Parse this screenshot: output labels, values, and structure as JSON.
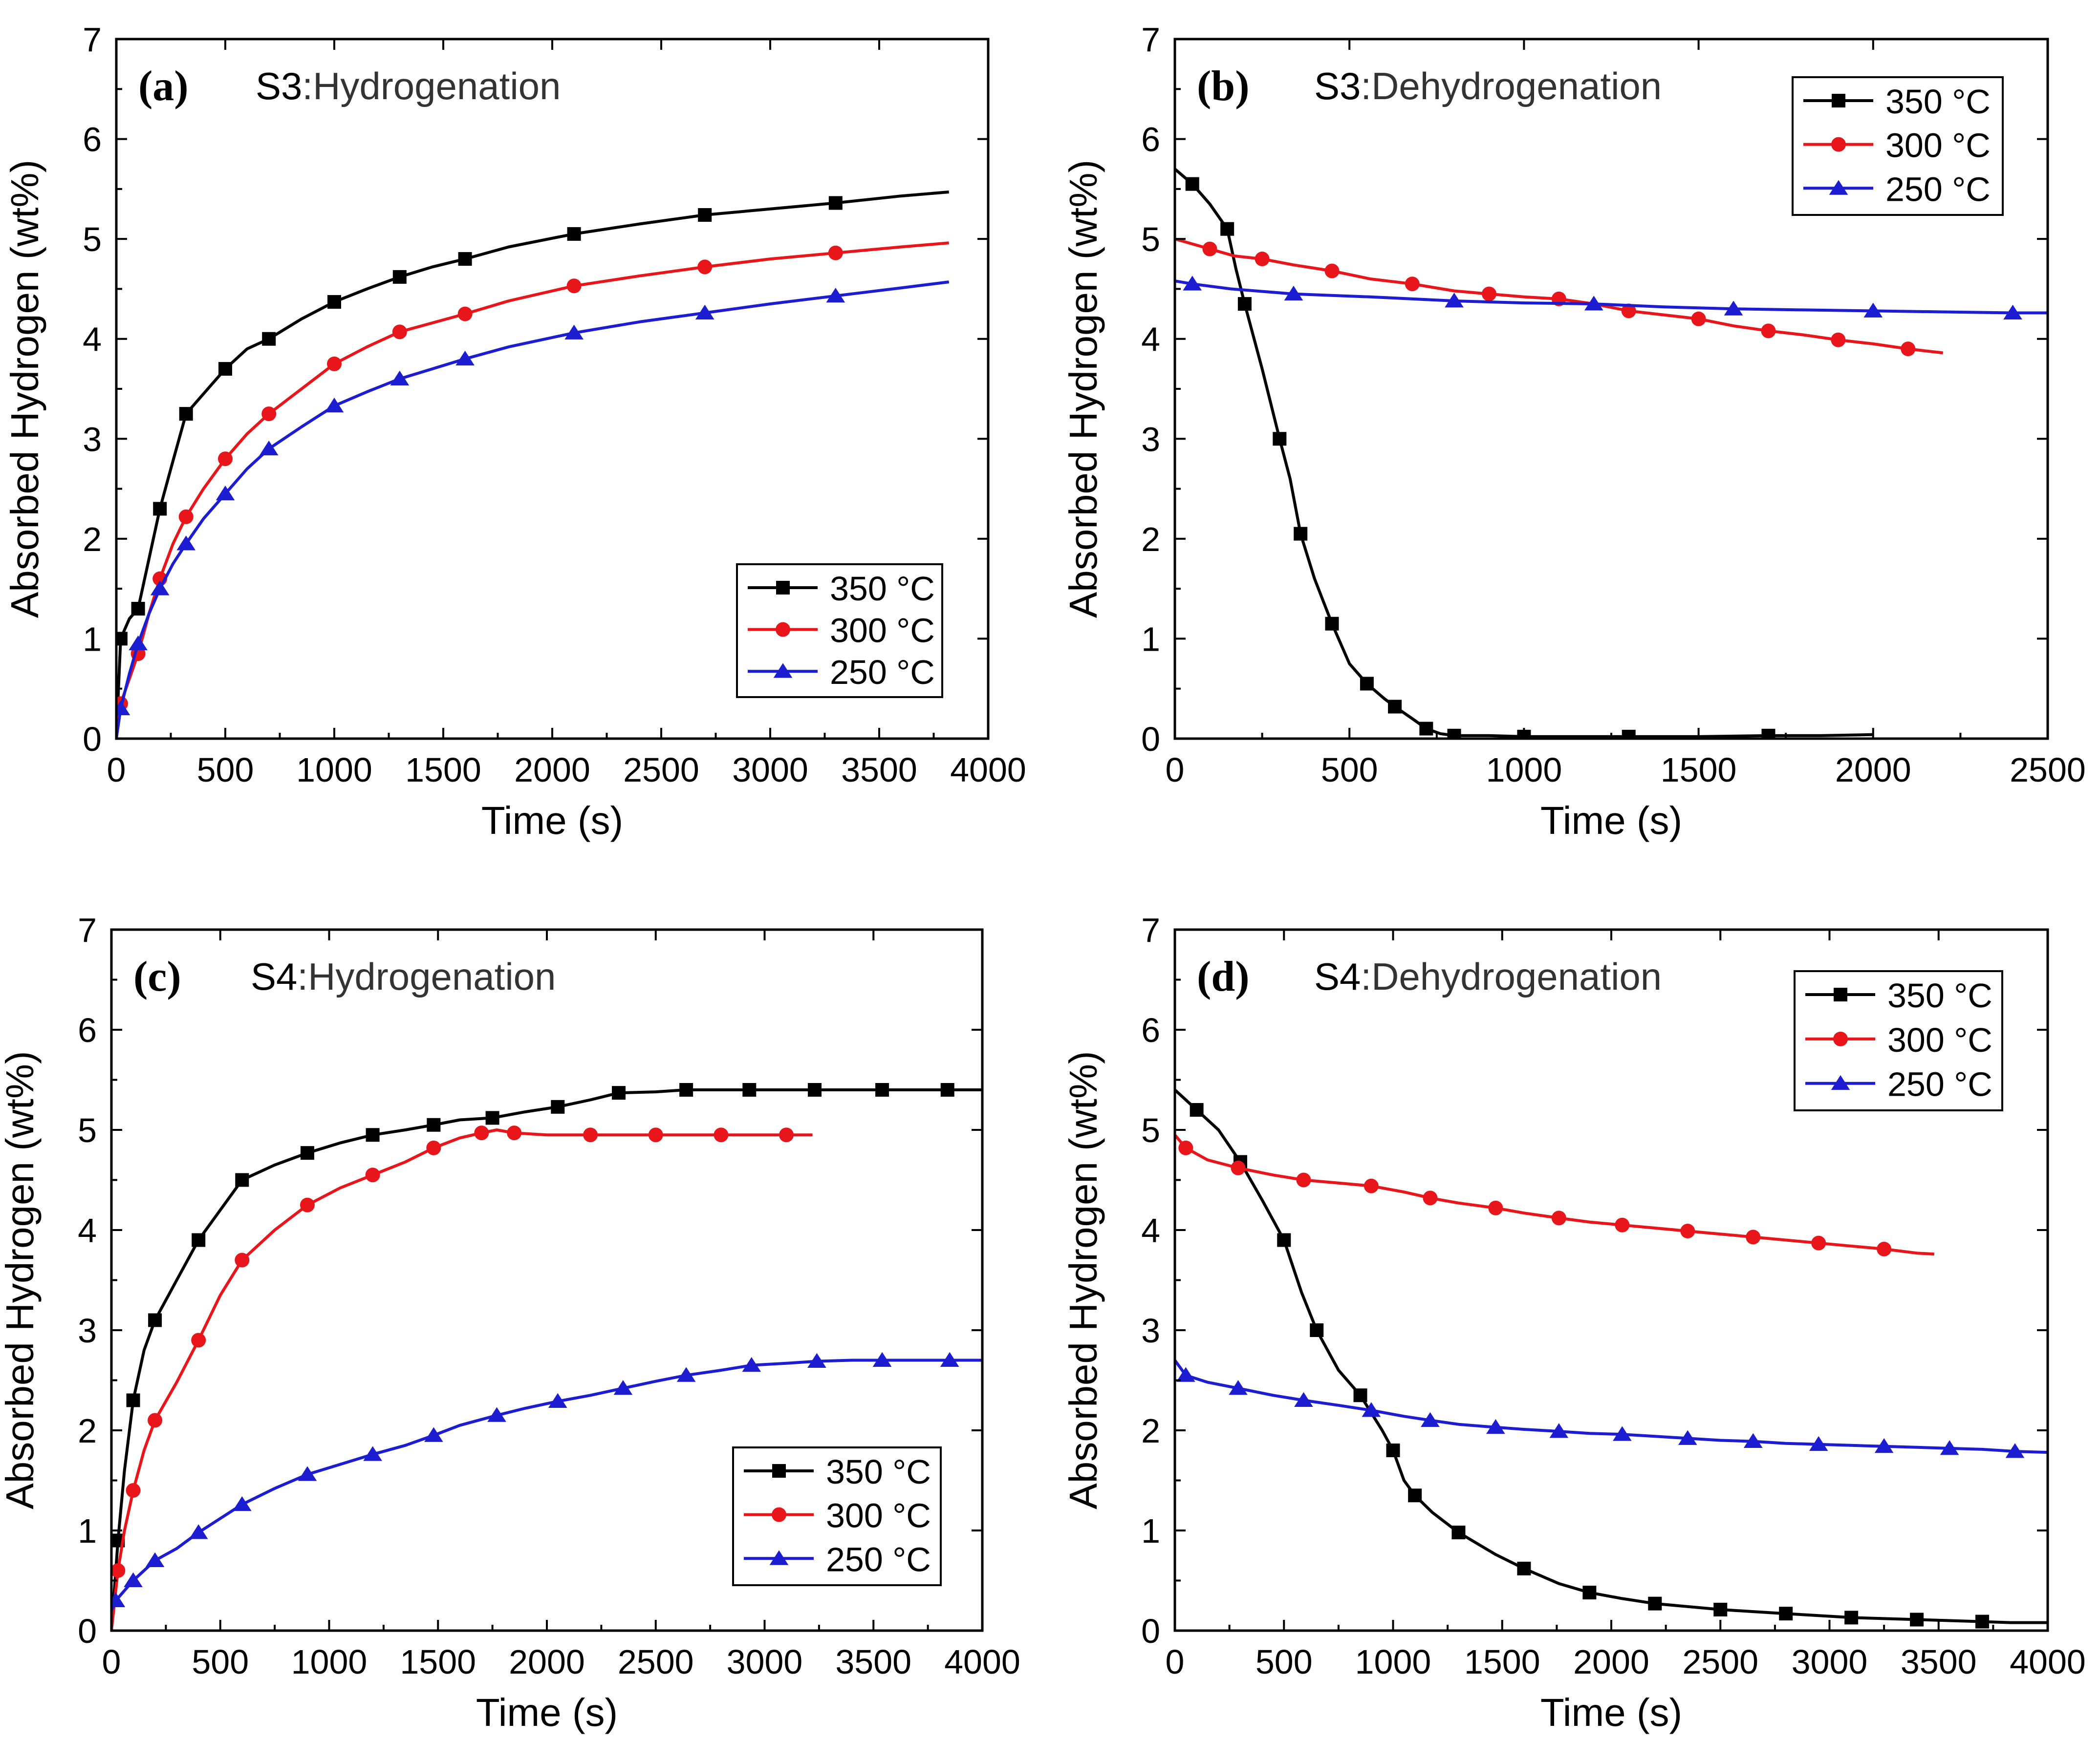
{
  "figure": {
    "series_colors": {
      "350": "#000000",
      "300": "#e8151b",
      "250": "#1c1cd0"
    }
  },
  "chart_data": [
    {
      "panel": "a",
      "type": "line",
      "panel_label": "(a)",
      "title_prefix": "S3",
      "title_suffix": ":Hydrogenation",
      "xlabel": "Time (s)",
      "ylabel": "Absorbed Hydrogen (wt%)",
      "xlim": [
        0,
        4000
      ],
      "ylim": [
        0,
        7
      ],
      "xticks": [
        0,
        500,
        1000,
        1500,
        2000,
        2500,
        3000,
        3500,
        4000
      ],
      "yticks": [
        0,
        1,
        2,
        3,
        4,
        5,
        6,
        7
      ],
      "legend_position": "bottom-right",
      "series": [
        {
          "name": "350 °C",
          "temp": "350",
          "marker": "square",
          "x": [
            0,
            20,
            60,
            100,
            150,
            200,
            250,
            320,
            400,
            500,
            600,
            700,
            850,
            1000,
            1150,
            1300,
            1450,
            1600,
            1800,
            2100,
            2400,
            2700,
            3000,
            3300,
            3600,
            3820
          ],
          "y": [
            0,
            1.0,
            1.2,
            1.3,
            1.8,
            2.3,
            2.7,
            3.25,
            3.45,
            3.7,
            3.9,
            4.0,
            4.2,
            4.37,
            4.5,
            4.62,
            4.72,
            4.8,
            4.92,
            5.05,
            5.15,
            5.24,
            5.3,
            5.36,
            5.43,
            5.47
          ]
        },
        {
          "name": "300 °C",
          "temp": "300",
          "marker": "circle",
          "x": [
            0,
            20,
            60,
            100,
            150,
            200,
            260,
            320,
            400,
            500,
            600,
            700,
            850,
            1000,
            1150,
            1300,
            1450,
            1600,
            1800,
            2100,
            2400,
            2700,
            3000,
            3300,
            3600,
            3820
          ],
          "y": [
            0,
            0.35,
            0.6,
            0.85,
            1.25,
            1.6,
            1.95,
            2.22,
            2.5,
            2.8,
            3.05,
            3.25,
            3.5,
            3.75,
            3.92,
            4.07,
            4.16,
            4.25,
            4.38,
            4.53,
            4.63,
            4.72,
            4.8,
            4.86,
            4.92,
            4.96
          ]
        },
        {
          "name": "250 °C",
          "temp": "250",
          "marker": "triangle",
          "x": [
            0,
            20,
            60,
            100,
            150,
            200,
            260,
            320,
            400,
            500,
            600,
            700,
            850,
            1000,
            1150,
            1300,
            1450,
            1600,
            1800,
            2100,
            2400,
            2700,
            3000,
            3300,
            3600,
            3820
          ],
          "y": [
            0,
            0.3,
            0.65,
            0.95,
            1.25,
            1.5,
            1.75,
            1.95,
            2.2,
            2.45,
            2.7,
            2.9,
            3.12,
            3.33,
            3.47,
            3.6,
            3.7,
            3.8,
            3.92,
            4.06,
            4.17,
            4.26,
            4.35,
            4.43,
            4.51,
            4.57
          ]
        }
      ]
    },
    {
      "panel": "b",
      "type": "line",
      "panel_label": "(b)",
      "title_prefix": "S3",
      "title_suffix": ":Dehydrogenation",
      "xlabel": "Time (s)",
      "ylabel": "Absorbed Hydrogen (wt%)",
      "xlim": [
        0,
        2500
      ],
      "ylim": [
        0,
        7
      ],
      "xticks": [
        0,
        500,
        1000,
        1500,
        2000,
        2500
      ],
      "yticks": [
        0,
        1,
        2,
        3,
        4,
        5,
        6,
        7
      ],
      "legend_position": "top-right",
      "series": [
        {
          "name": "350 °C",
          "temp": "350",
          "marker": "square",
          "x": [
            0,
            50,
            100,
            150,
            175,
            200,
            250,
            300,
            330,
            360,
            400,
            450,
            500,
            550,
            600,
            630,
            680,
            720,
            760,
            800,
            900,
            1000,
            1100,
            1300,
            1500,
            1700,
            1850,
            2000
          ],
          "y": [
            5.7,
            5.55,
            5.35,
            5.1,
            4.7,
            4.35,
            3.7,
            3.0,
            2.6,
            2.05,
            1.6,
            1.15,
            0.75,
            0.55,
            0.4,
            0.32,
            0.2,
            0.1,
            0.05,
            0.03,
            0.03,
            0.02,
            0.02,
            0.02,
            0.02,
            0.03,
            0.03,
            0.04
          ]
        },
        {
          "name": "300 °C",
          "temp": "300",
          "marker": "circle",
          "x": [
            0,
            100,
            170,
            250,
            340,
            450,
            560,
            680,
            800,
            900,
            1000,
            1100,
            1200,
            1300,
            1400,
            1500,
            1600,
            1700,
            1800,
            1900,
            2000,
            2100,
            2200
          ],
          "y": [
            5.0,
            4.9,
            4.83,
            4.8,
            4.74,
            4.68,
            4.6,
            4.55,
            4.48,
            4.45,
            4.42,
            4.4,
            4.35,
            4.28,
            4.24,
            4.2,
            4.13,
            4.08,
            4.04,
            3.99,
            3.95,
            3.9,
            3.86
          ]
        },
        {
          "name": "250 °C",
          "temp": "250",
          "marker": "triangle",
          "x": [
            0,
            50,
            160,
            340,
            560,
            800,
            1000,
            1200,
            1400,
            1600,
            1800,
            2000,
            2200,
            2400,
            2500
          ],
          "y": [
            4.58,
            4.55,
            4.5,
            4.45,
            4.42,
            4.38,
            4.36,
            4.35,
            4.32,
            4.3,
            4.29,
            4.28,
            4.27,
            4.26,
            4.26
          ]
        }
      ]
    },
    {
      "panel": "c",
      "type": "line",
      "panel_label": "(c)",
      "title_prefix": "S4",
      "title_suffix": ":Hydrogenation",
      "xlabel": "Time (s)",
      "ylabel": "Absorbed Hydrogen (wt%)",
      "xlim": [
        0,
        4000
      ],
      "ylim": [
        0,
        7
      ],
      "xticks": [
        0,
        500,
        1000,
        1500,
        2000,
        2500,
        3000,
        3500,
        4000
      ],
      "yticks": [
        0,
        1,
        2,
        3,
        4,
        5,
        6,
        7
      ],
      "legend_position": "bottom-right",
      "series": [
        {
          "name": "350 °C",
          "temp": "350",
          "marker": "square",
          "x": [
            0,
            30,
            60,
            100,
            150,
            200,
            300,
            400,
            500,
            600,
            750,
            900,
            1050,
            1200,
            1350,
            1480,
            1600,
            1750,
            1900,
            2050,
            2200,
            2330,
            2500,
            2640,
            2800,
            2930,
            3100,
            3230,
            3400,
            3540,
            3700,
            3840,
            4000
          ],
          "y": [
            0,
            0.9,
            1.6,
            2.3,
            2.8,
            3.1,
            3.5,
            3.9,
            4.2,
            4.5,
            4.65,
            4.77,
            4.87,
            4.95,
            5.0,
            5.05,
            5.1,
            5.12,
            5.18,
            5.23,
            5.3,
            5.37,
            5.38,
            5.4,
            5.4,
            5.4,
            5.4,
            5.4,
            5.4,
            5.4,
            5.4,
            5.4,
            5.4
          ]
        },
        {
          "name": "300 °C",
          "temp": "300",
          "marker": "circle",
          "x": [
            0,
            30,
            60,
            100,
            150,
            200,
            300,
            400,
            500,
            600,
            750,
            900,
            1050,
            1200,
            1350,
            1480,
            1600,
            1700,
            1770,
            1850,
            2000,
            2200,
            2350,
            2500,
            2650,
            2800,
            2930,
            3100,
            3220
          ],
          "y": [
            0,
            0.6,
            1.0,
            1.4,
            1.8,
            2.1,
            2.48,
            2.9,
            3.35,
            3.7,
            4.0,
            4.25,
            4.42,
            4.55,
            4.68,
            4.82,
            4.92,
            4.97,
            5.0,
            4.97,
            4.95,
            4.95,
            4.95,
            4.95,
            4.95,
            4.95,
            4.95,
            4.95,
            4.95
          ]
        },
        {
          "name": "250 °C",
          "temp": "250",
          "marker": "triangle",
          "x": [
            0,
            20,
            60,
            100,
            150,
            200,
            300,
            400,
            500,
            600,
            750,
            900,
            1050,
            1200,
            1350,
            1480,
            1600,
            1770,
            1900,
            2050,
            2200,
            2350,
            2500,
            2640,
            2800,
            2940,
            3100,
            3240,
            3400,
            3540,
            3700,
            3850,
            4000
          ],
          "y": [
            0.2,
            0.3,
            0.4,
            0.5,
            0.6,
            0.7,
            0.82,
            0.98,
            1.12,
            1.26,
            1.42,
            1.56,
            1.66,
            1.76,
            1.85,
            1.95,
            2.05,
            2.15,
            2.22,
            2.29,
            2.35,
            2.42,
            2.49,
            2.55,
            2.6,
            2.65,
            2.67,
            2.69,
            2.7,
            2.7,
            2.7,
            2.7,
            2.7
          ]
        }
      ]
    },
    {
      "panel": "d",
      "type": "line",
      "panel_label": "(d)",
      "title_prefix": "S4",
      "title_suffix": ":Dehydrogenation",
      "xlabel": "Time (s)",
      "ylabel": "Absorbed Hydrogen (wt%)",
      "xlim": [
        0,
        4000
      ],
      "ylim": [
        0,
        7
      ],
      "xticks": [
        0,
        500,
        1000,
        1500,
        2000,
        2500,
        3000,
        3500,
        4000
      ],
      "yticks": [
        0,
        1,
        2,
        3,
        4,
        5,
        6,
        7
      ],
      "legend_position": "top-right",
      "series": [
        {
          "name": "350 °C",
          "temp": "350",
          "marker": "square",
          "x": [
            0,
            100,
            200,
            300,
            400,
            500,
            580,
            650,
            750,
            850,
            950,
            1000,
            1050,
            1100,
            1180,
            1300,
            1470,
            1600,
            1760,
            1900,
            2050,
            2200,
            2350,
            2500,
            2650,
            2800,
            2950,
            3100,
            3250,
            3400,
            3550,
            3700,
            3830,
            4000
          ],
          "y": [
            5.4,
            5.2,
            5.0,
            4.68,
            4.3,
            3.9,
            3.38,
            3.0,
            2.6,
            2.35,
            2.0,
            1.8,
            1.5,
            1.35,
            1.18,
            0.98,
            0.76,
            0.62,
            0.47,
            0.38,
            0.32,
            0.27,
            0.24,
            0.21,
            0.19,
            0.17,
            0.15,
            0.13,
            0.12,
            0.11,
            0.1,
            0.09,
            0.08,
            0.08
          ]
        },
        {
          "name": "300 °C",
          "temp": "300",
          "marker": "circle",
          "x": [
            0,
            50,
            150,
            290,
            450,
            590,
            750,
            900,
            1050,
            1170,
            1300,
            1470,
            1600,
            1760,
            1900,
            2050,
            2200,
            2350,
            2500,
            2650,
            2800,
            2950,
            3100,
            3250,
            3400,
            3480
          ],
          "y": [
            4.95,
            4.82,
            4.7,
            4.62,
            4.55,
            4.5,
            4.47,
            4.44,
            4.38,
            4.32,
            4.27,
            4.22,
            4.17,
            4.12,
            4.08,
            4.05,
            4.02,
            3.99,
            3.96,
            3.93,
            3.9,
            3.87,
            3.84,
            3.81,
            3.77,
            3.76
          ]
        },
        {
          "name": "250 °C",
          "temp": "250",
          "marker": "triangle",
          "x": [
            0,
            50,
            150,
            290,
            450,
            590,
            750,
            900,
            1050,
            1170,
            1300,
            1470,
            1600,
            1760,
            1900,
            2050,
            2200,
            2350,
            2500,
            2650,
            2800,
            2950,
            3100,
            3250,
            3400,
            3550,
            3700,
            3850,
            4000
          ],
          "y": [
            2.7,
            2.55,
            2.48,
            2.42,
            2.35,
            2.3,
            2.25,
            2.2,
            2.14,
            2.1,
            2.06,
            2.03,
            2.01,
            1.99,
            1.97,
            1.96,
            1.94,
            1.92,
            1.9,
            1.89,
            1.87,
            1.86,
            1.85,
            1.84,
            1.83,
            1.82,
            1.81,
            1.79,
            1.78
          ]
        }
      ]
    }
  ]
}
